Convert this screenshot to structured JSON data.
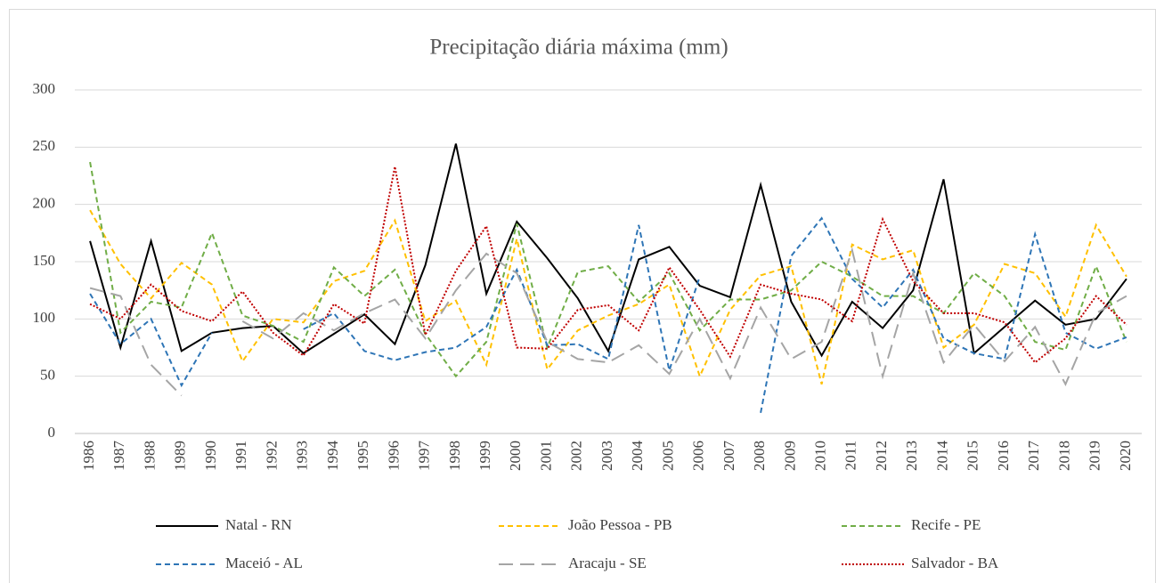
{
  "chart_data": {
    "type": "line",
    "title": "Precipitação diária máxima (mm)",
    "categories": [
      "1986",
      "1987",
      "1988",
      "1989",
      "1990",
      "1991",
      "1992",
      "1993",
      "1994",
      "1995",
      "1996",
      "1997",
      "1998",
      "1999",
      "2000",
      "2001",
      "2002",
      "2003",
      "2004",
      "2005",
      "2006",
      "2007",
      "2008",
      "2009",
      "2010",
      "2011",
      "2012",
      "2013",
      "2014",
      "2015",
      "2016",
      "2017",
      "2018",
      "2019",
      "2020"
    ],
    "ylim": [
      0,
      300
    ],
    "yticks": [
      0,
      50,
      100,
      150,
      200,
      250,
      300
    ],
    "grid": true,
    "legend": "bottom",
    "series": [
      {
        "name": "Natal - RN",
        "color": "#000000",
        "dash": "solid",
        "values": [
          168,
          75,
          168,
          72,
          88,
          92,
          94,
          70,
          87,
          104,
          78,
          147,
          253,
          122,
          185,
          153,
          118,
          72,
          152,
          163,
          129,
          119,
          217,
          115,
          68,
          115,
          92,
          125,
          222,
          70,
          93,
          116,
          95,
          100,
          135
        ]
      },
      {
        "name": "João Pessoa - PB",
        "color": "#ffc000",
        "dash": "dashed",
        "values": [
          195,
          148,
          118,
          149,
          130,
          63,
          100,
          97,
          133,
          142,
          186,
          98,
          116,
          60,
          170,
          56,
          90,
          103,
          113,
          130,
          50,
          108,
          138,
          146,
          43,
          165,
          152,
          160,
          75,
          95,
          148,
          140,
          102,
          182,
          137
        ]
      },
      {
        "name": "Recife - PE",
        "color": "#70ad47",
        "dash": "dashed",
        "values": [
          237,
          88,
          115,
          110,
          175,
          103,
          94,
          80,
          145,
          120,
          143,
          87,
          50,
          80,
          183,
          75,
          141,
          146,
          115,
          140,
          90,
          117,
          117,
          125,
          150,
          137,
          120,
          120,
          105,
          140,
          120,
          80,
          73,
          146,
          80
        ]
      },
      {
        "name": "Maceió - AL",
        "color": "#2e75b6",
        "dash": "dashed",
        "values": [
          122,
          78,
          100,
          42,
          88,
          null,
          null,
          91,
          105,
          72,
          64,
          71,
          75,
          93,
          143,
          77,
          78,
          65,
          182,
          55,
          137,
          null,
          18,
          155,
          188,
          135,
          110,
          143,
          83,
          70,
          65,
          174,
          88,
          74,
          84
        ]
      },
      {
        "name": "Aracaju - SE",
        "color": "#a5a5a5",
        "dash": "longdash",
        "values": [
          127,
          120,
          60,
          33,
          null,
          98,
          83,
          105,
          90,
          105,
          117,
          83,
          125,
          157,
          140,
          80,
          65,
          62,
          77,
          52,
          100,
          48,
          110,
          65,
          80,
          160,
          50,
          140,
          62,
          95,
          63,
          93,
          43,
          105,
          120
        ]
      },
      {
        "name": "Salvador - BA",
        "color": "#c00000",
        "dash": "dotted",
        "values": [
          113,
          100,
          130,
          107,
          98,
          124,
          88,
          68,
          113,
          96,
          233,
          86,
          142,
          181,
          75,
          74,
          108,
          112,
          90,
          145,
          108,
          67,
          130,
          122,
          117,
          98,
          187,
          133,
          105,
          105,
          97,
          62,
          83,
          120,
          95
        ]
      }
    ]
  }
}
